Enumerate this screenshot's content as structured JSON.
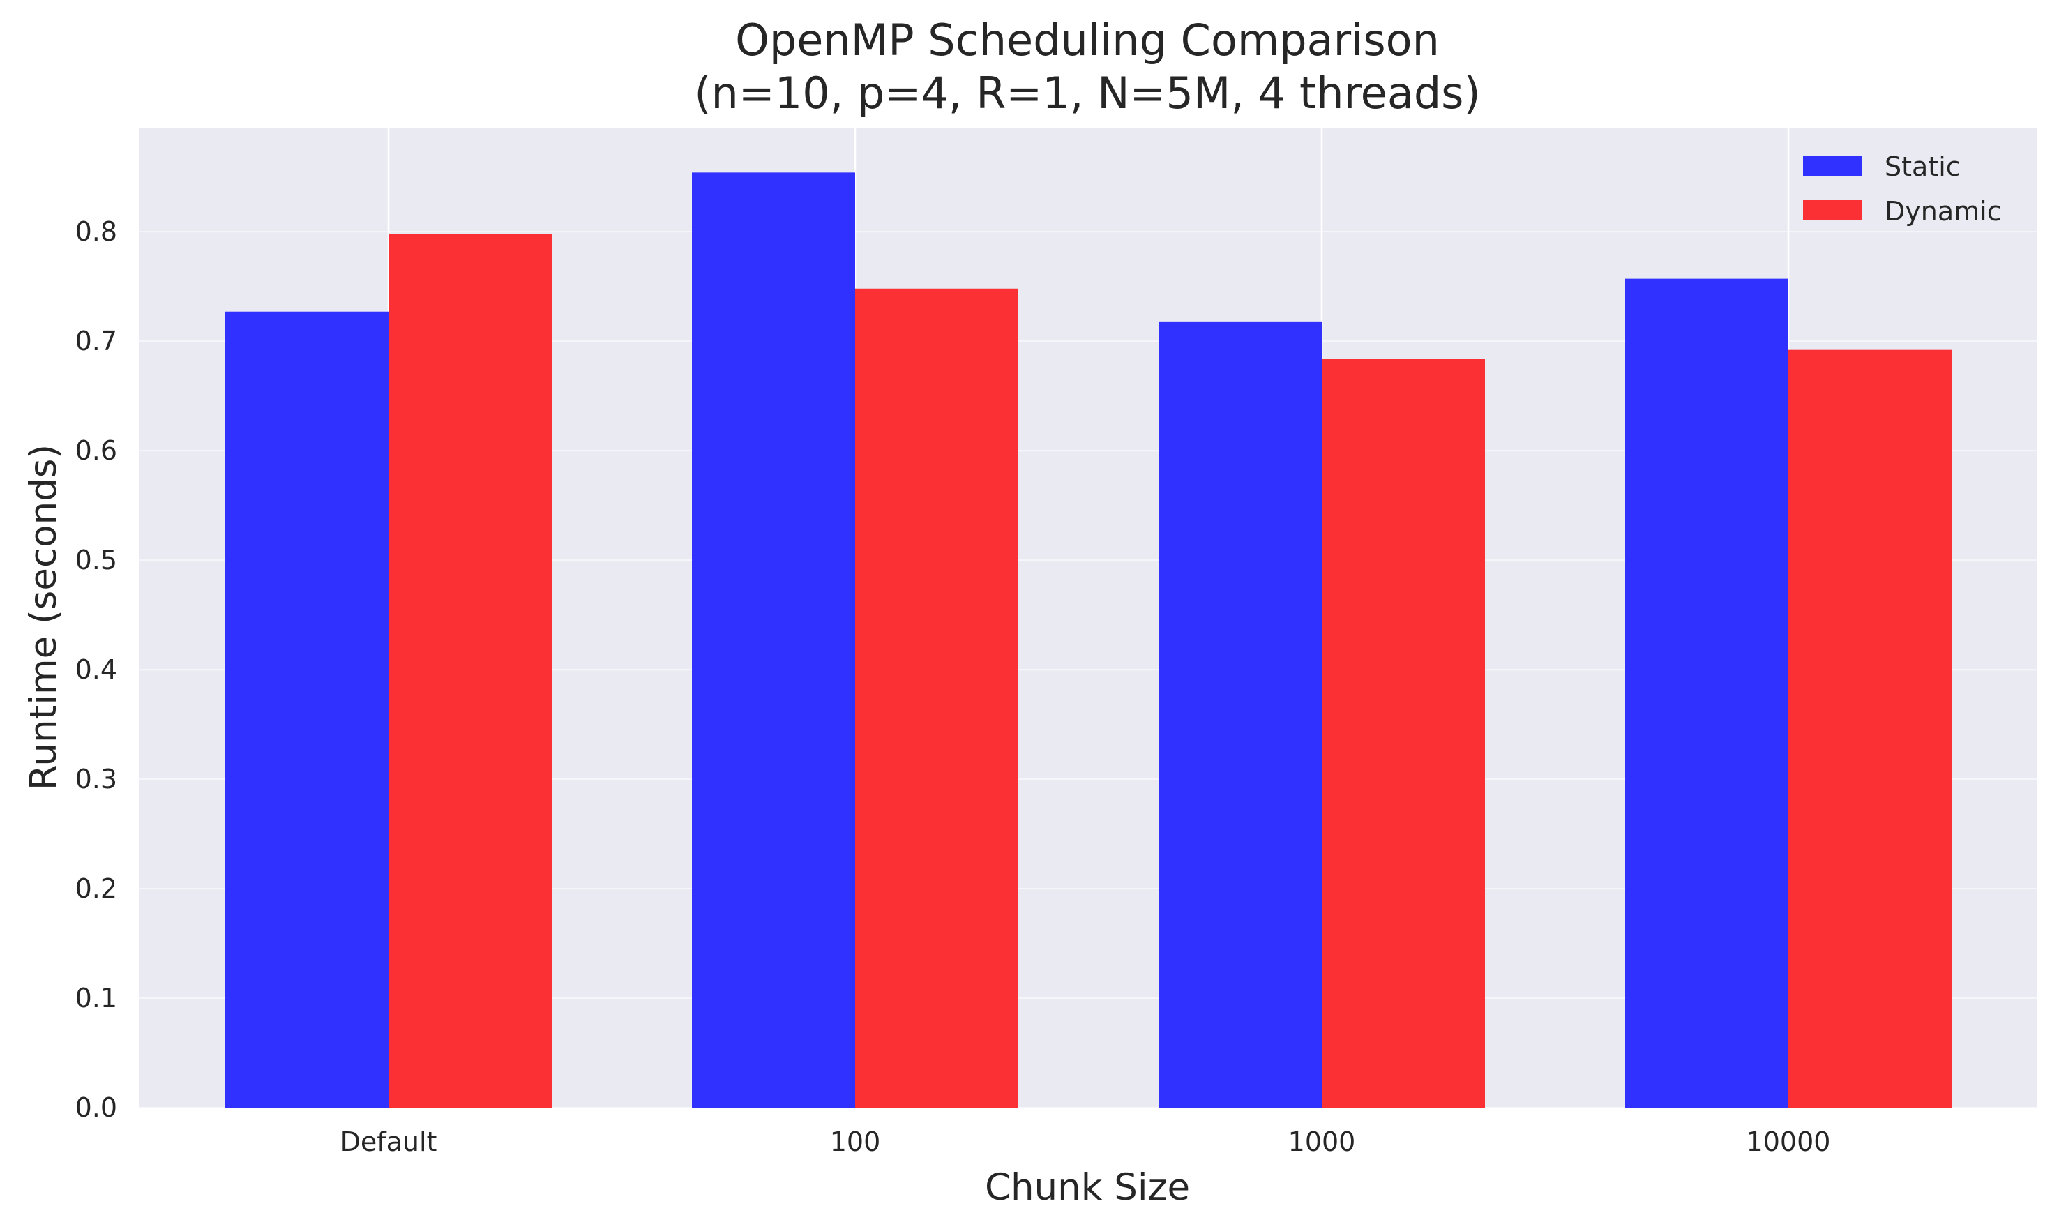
{
  "chart_data": {
    "type": "bar",
    "title_lines": [
      "OpenMP Scheduling Comparison",
      "(n=10, p=4, R=1, N=5M, 4 threads)"
    ],
    "xlabel": "Chunk Size",
    "ylabel": "Runtime (seconds)",
    "categories": [
      "Default",
      "100",
      "1000",
      "10000"
    ],
    "series": [
      {
        "name": "Static",
        "color": "#3030ff",
        "values": [
          0.727,
          0.854,
          0.718,
          0.757
        ]
      },
      {
        "name": "Dynamic",
        "color": "#fa3035",
        "values": [
          0.798,
          0.748,
          0.684,
          0.692
        ]
      }
    ],
    "ylim": [
      0,
      0.895
    ],
    "yticks": [
      0.0,
      0.1,
      0.2,
      0.3,
      0.4,
      0.5,
      0.6,
      0.7,
      0.8
    ],
    "ytick_labels": [
      "0.0",
      "0.1",
      "0.2",
      "0.3",
      "0.4",
      "0.5",
      "0.6",
      "0.7",
      "0.8"
    ],
    "grid": true,
    "legend_position": "top-right",
    "background_color": "#eaeaf2"
  }
}
